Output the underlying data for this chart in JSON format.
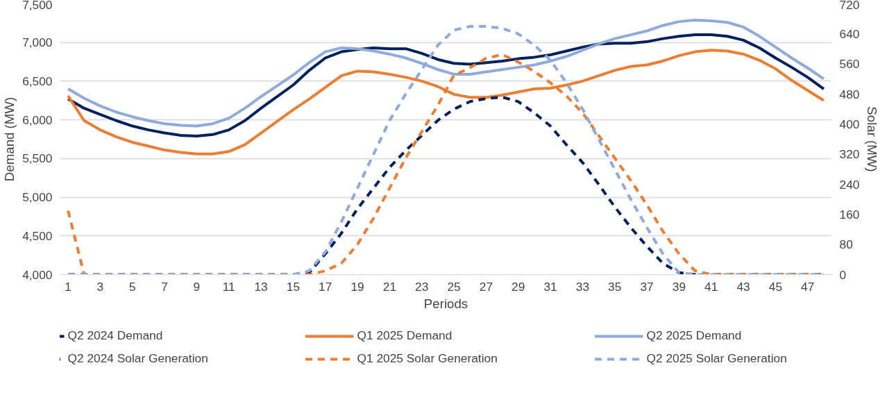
{
  "chart_data": {
    "type": "line",
    "xlabel": "Periods",
    "ylabel": "Demand (MW)",
    "y2label": "Solar (MW)",
    "x": [
      1,
      2,
      3,
      4,
      5,
      6,
      7,
      8,
      9,
      10,
      11,
      12,
      13,
      14,
      15,
      16,
      17,
      18,
      19,
      20,
      21,
      22,
      23,
      24,
      25,
      26,
      27,
      28,
      29,
      30,
      31,
      32,
      33,
      34,
      35,
      36,
      37,
      38,
      39,
      40,
      41,
      42,
      43,
      44,
      45,
      46,
      47,
      48
    ],
    "xlim": [
      0.5,
      48.5
    ],
    "xticks": [
      1,
      3,
      5,
      7,
      9,
      11,
      13,
      15,
      17,
      19,
      21,
      23,
      25,
      27,
      29,
      31,
      33,
      35,
      37,
      39,
      41,
      43,
      45,
      47
    ],
    "ylim": [
      4000,
      7500
    ],
    "yticks": [
      {
        "value": 4000,
        "label": "4,000"
      },
      {
        "value": 4500,
        "label": "4,500"
      },
      {
        "value": 5000,
        "label": "5,000"
      },
      {
        "value": 5500,
        "label": "5,500"
      },
      {
        "value": 6000,
        "label": "6,000"
      },
      {
        "value": 6500,
        "label": "6,500"
      },
      {
        "value": 7000,
        "label": "7,000"
      },
      {
        "value": 7500,
        "label": "7,500"
      }
    ],
    "y2lim": [
      0,
      720
    ],
    "y2ticks": [
      0,
      80,
      160,
      240,
      320,
      400,
      480,
      560,
      640,
      720
    ],
    "grid": "y",
    "legend": "bottom",
    "marker": "none",
    "series": [
      {
        "name": "Q2 2024 Demand",
        "color": "#002060",
        "line_style": "solid",
        "values": [
          6270,
          6150,
          6070,
          5990,
          5920,
          5870,
          5830,
          5800,
          5790,
          5810,
          5870,
          5990,
          6150,
          6300,
          6450,
          6640,
          6800,
          6880,
          6910,
          6930,
          6920,
          6920,
          6860,
          6780,
          6730,
          6720,
          6740,
          6760,
          6790,
          6810,
          6840,
          6890,
          6940,
          6980,
          6990,
          6990,
          7010,
          7050,
          7080,
          7100,
          7100,
          7080,
          7030,
          6930,
          6800,
          6680,
          6550,
          6400
        ]
      },
      {
        "name": "Q1 2025 Demand",
        "color": "#ed7d31",
        "line_style": "solid",
        "values": [
          6310,
          5990,
          5870,
          5780,
          5710,
          5660,
          5610,
          5580,
          5560,
          5560,
          5590,
          5680,
          5830,
          5980,
          6130,
          6270,
          6420,
          6570,
          6630,
          6620,
          6590,
          6550,
          6500,
          6430,
          6330,
          6290,
          6290,
          6320,
          6360,
          6400,
          6410,
          6450,
          6500,
          6570,
          6640,
          6690,
          6710,
          6760,
          6830,
          6880,
          6900,
          6890,
          6850,
          6770,
          6660,
          6510,
          6380,
          6250
        ]
      },
      {
        "name": "Q2 2025 Demand",
        "color": "#8faadc",
        "line_style": "solid",
        "values": [
          6400,
          6280,
          6180,
          6100,
          6040,
          5990,
          5950,
          5930,
          5920,
          5950,
          6020,
          6150,
          6300,
          6440,
          6580,
          6740,
          6880,
          6930,
          6920,
          6890,
          6850,
          6800,
          6730,
          6650,
          6590,
          6590,
          6620,
          6650,
          6680,
          6710,
          6760,
          6820,
          6900,
          6980,
          7050,
          7100,
          7150,
          7220,
          7270,
          7290,
          7280,
          7260,
          7200,
          7080,
          6940,
          6800,
          6670,
          6530
        ]
      },
      {
        "name": "Q2 2024 Solar Generation",
        "color": "#002060",
        "line_style": "dashed",
        "axis": "y2",
        "values": [
          0,
          0,
          0,
          0,
          0,
          0,
          0,
          0,
          0,
          0,
          0,
          0,
          0,
          0,
          0,
          5,
          55,
          110,
          175,
          230,
          285,
          330,
          370,
          410,
          440,
          460,
          468,
          472,
          460,
          430,
          395,
          345,
          298,
          240,
          180,
          125,
          75,
          30,
          5,
          0,
          0,
          0,
          0,
          0,
          0,
          0,
          0,
          0
        ]
      },
      {
        "name": "Q1 2025 Solar Generation",
        "color": "#ed7d31",
        "line_style": "dashed",
        "axis": "y2",
        "values": [
          170,
          0,
          0,
          0,
          0,
          0,
          0,
          0,
          0,
          0,
          0,
          0,
          0,
          0,
          0,
          0,
          10,
          30,
          80,
          150,
          230,
          310,
          380,
          450,
          530,
          550,
          575,
          585,
          565,
          540,
          510,
          475,
          430,
          370,
          310,
          250,
          185,
          115,
          55,
          10,
          0,
          0,
          0,
          0,
          0,
          0,
          0,
          0
        ]
      },
      {
        "name": "Q2 2025 Solar Generation",
        "color": "#8faadc",
        "line_style": "dashed",
        "axis": "y2",
        "values": [
          0,
          0,
          0,
          0,
          0,
          0,
          0,
          0,
          0,
          0,
          0,
          0,
          0,
          0,
          0,
          10,
          60,
          140,
          230,
          320,
          410,
          480,
          545,
          610,
          650,
          660,
          660,
          655,
          640,
          610,
          570,
          510,
          440,
          360,
          280,
          200,
          125,
          55,
          5,
          0,
          0,
          0,
          0,
          0,
          0,
          0,
          0,
          0
        ]
      }
    ]
  }
}
